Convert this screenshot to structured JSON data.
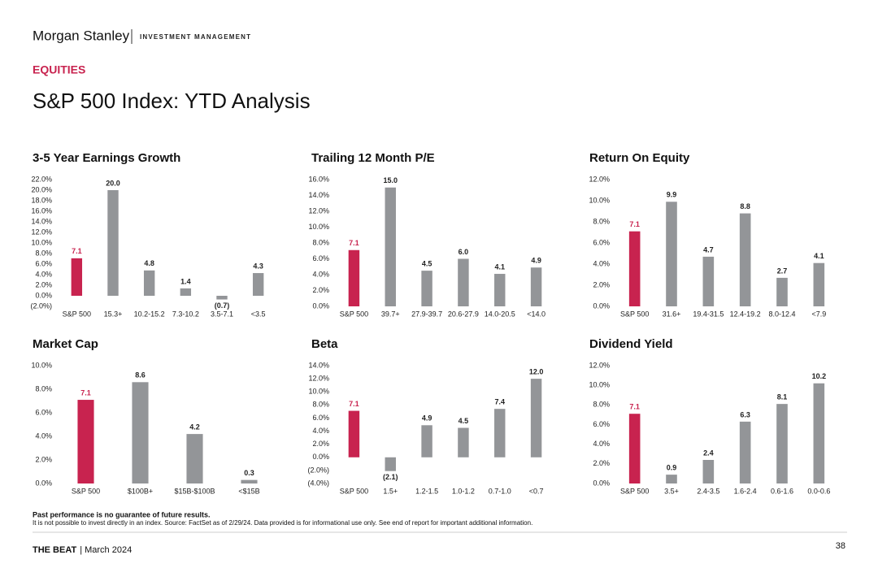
{
  "header": {
    "brand": "Morgan Stanley",
    "division": "INVESTMENT MANAGEMENT",
    "section": "EQUITIES",
    "title": "S&P 500 Index: YTD Analysis"
  },
  "chart_data": [
    {
      "type": "bar",
      "title": "3-5 Year Earnings Growth",
      "color": "#939598",
      "categories": [
        "S&P 500",
        "15.3+",
        "10.2-15.2",
        "7.3-10.2",
        "3.5-7.1",
        "<3.5"
      ],
      "values": [
        7.1,
        20,
        4.8,
        1.4,
        -0.7,
        4.3
      ],
      "value_labels": [
        "7.1",
        "20.0",
        "4.8",
        "1.4",
        "(0.7)",
        "4.3"
      ],
      "colors": [
        "#c8234f",
        "#939598",
        "#939598",
        "#939598",
        "#939598",
        "#939598"
      ],
      "ylim": [
        -2,
        22
      ],
      "yticks": [
        {
          "value": -2,
          "label": "(2.0%)"
        },
        {
          "value": 0,
          "label": "0.0%"
        },
        {
          "value": 2,
          "label": "2.0%"
        },
        {
          "value": 4,
          "label": "4.0%"
        },
        {
          "value": 6,
          "label": "6.0%"
        },
        {
          "value": 8,
          "label": "8.0%"
        },
        {
          "value": 10,
          "label": "10.0%"
        },
        {
          "value": 12,
          "label": "12.0%"
        },
        {
          "value": 14,
          "label": "14.0%"
        },
        {
          "value": 16,
          "label": "16.0%"
        },
        {
          "value": 18,
          "label": "18.0%"
        },
        {
          "value": 20,
          "label": "20.0%"
        },
        {
          "value": 22,
          "label": "22.0%"
        }
      ]
    },
    {
      "type": "bar",
      "title": "Trailing 12 Month P/E",
      "color": "#939598",
      "categories": [
        "S&P 500",
        "39.7+",
        "27.9-39.7",
        "20.6-27.9",
        "14.0-20.5",
        "<14.0"
      ],
      "values": [
        7.1,
        15,
        4.5,
        6,
        4.1,
        4.9
      ],
      "value_labels": [
        "7.1",
        "15.0",
        "4.5",
        "6.0",
        "4.1",
        "4.9"
      ],
      "colors": [
        "#c8234f",
        "#939598",
        "#939598",
        "#939598",
        "#939598",
        "#939598"
      ],
      "ylim": [
        0,
        16
      ],
      "yticks": [
        {
          "value": 0,
          "label": "0.0%"
        },
        {
          "value": 2,
          "label": "2.0%"
        },
        {
          "value": 4,
          "label": "4.0%"
        },
        {
          "value": 6,
          "label": "6.0%"
        },
        {
          "value": 8,
          "label": "8.0%"
        },
        {
          "value": 10,
          "label": "10.0%"
        },
        {
          "value": 12,
          "label": "12.0%"
        },
        {
          "value": 14,
          "label": "14.0%"
        },
        {
          "value": 16,
          "label": "16.0%"
        }
      ]
    },
    {
      "type": "bar",
      "title": "Return On Equity",
      "color": "#939598",
      "categories": [
        "S&P 500",
        "31.6+",
        "19.4-31.5",
        "12.4-19.2",
        "8.0-12.4",
        "<7.9"
      ],
      "values": [
        7.1,
        9.9,
        4.7,
        8.8,
        2.7,
        4.1
      ],
      "value_labels": [
        "7.1",
        "9.9",
        "4.7",
        "8.8",
        "2.7",
        "4.1"
      ],
      "colors": [
        "#c8234f",
        "#939598",
        "#939598",
        "#939598",
        "#939598",
        "#939598"
      ],
      "ylim": [
        0,
        12
      ],
      "yticks": [
        {
          "value": 0,
          "label": "0.0%"
        },
        {
          "value": 2,
          "label": "2.0%"
        },
        {
          "value": 4,
          "label": "4.0%"
        },
        {
          "value": 6,
          "label": "6.0%"
        },
        {
          "value": 8,
          "label": "8.0%"
        },
        {
          "value": 10,
          "label": "10.0%"
        },
        {
          "value": 12,
          "label": "12.0%"
        }
      ]
    },
    {
      "type": "bar",
      "title": "Market Cap",
      "color": "#939598",
      "categories": [
        "S&P 500",
        "$100B+",
        "$15B-$100B",
        "<$15B"
      ],
      "values": [
        7.1,
        8.6,
        4.2,
        0.3
      ],
      "value_labels": [
        "7.1",
        "8.6",
        "4.2",
        "0.3"
      ],
      "colors": [
        "#c8234f",
        "#939598",
        "#939598",
        "#939598"
      ],
      "ylim": [
        0,
        10
      ],
      "yticks": [
        {
          "value": 0,
          "label": "0.0%"
        },
        {
          "value": 2,
          "label": "2.0%"
        },
        {
          "value": 4,
          "label": "4.0%"
        },
        {
          "value": 6,
          "label": "6.0%"
        },
        {
          "value": 8,
          "label": "8.0%"
        },
        {
          "value": 10,
          "label": "10.0%"
        }
      ]
    },
    {
      "type": "bar",
      "title": "Beta",
      "color": "#939598",
      "categories": [
        "S&P 500",
        "1.5+",
        "1.2-1.5",
        "1.0-1.2",
        "0.7-1.0",
        "<0.7"
      ],
      "values": [
        7.1,
        -2.1,
        4.9,
        4.5,
        7.4,
        12
      ],
      "value_labels": [
        "7.1",
        "(2.1)",
        "4.9",
        "4.5",
        "7.4",
        "12.0"
      ],
      "colors": [
        "#c8234f",
        "#939598",
        "#939598",
        "#939598",
        "#939598",
        "#939598"
      ],
      "ylim": [
        -4,
        14
      ],
      "yticks": [
        {
          "value": -4,
          "label": "(4.0%)"
        },
        {
          "value": -2,
          "label": "(2.0%)"
        },
        {
          "value": 0,
          "label": "0.0%"
        },
        {
          "value": 2,
          "label": "2.0%"
        },
        {
          "value": 4,
          "label": "4.0%"
        },
        {
          "value": 6,
          "label": "6.0%"
        },
        {
          "value": 8,
          "label": "8.0%"
        },
        {
          "value": 10,
          "label": "10.0%"
        },
        {
          "value": 12,
          "label": "12.0%"
        },
        {
          "value": 14,
          "label": "14.0%"
        }
      ]
    },
    {
      "type": "bar",
      "title": "Dividend Yield",
      "color": "#939598",
      "categories": [
        "S&P 500",
        "3.5+",
        "2.4-3.5",
        "1.6-2.4",
        "0.6-1.6",
        "0.0-0.6"
      ],
      "values": [
        7.1,
        0.9,
        2.4,
        6.3,
        8.1,
        10.2
      ],
      "value_labels": [
        "7.1",
        "0.9",
        "2.4",
        "6.3",
        "8.1",
        "10.2"
      ],
      "colors": [
        "#c8234f",
        "#939598",
        "#939598",
        "#939598",
        "#939598",
        "#939598"
      ],
      "ylim": [
        0,
        12
      ],
      "yticks": [
        {
          "value": 0,
          "label": "0.0%"
        },
        {
          "value": 2,
          "label": "2.0%"
        },
        {
          "value": 4,
          "label": "4.0%"
        },
        {
          "value": 6,
          "label": "6.0%"
        },
        {
          "value": 8,
          "label": "8.0%"
        },
        {
          "value": 10,
          "label": "10.0%"
        },
        {
          "value": 12,
          "label": "12.0%"
        }
      ]
    }
  ],
  "footer": {
    "disclaimer_bold": "Past performance is no guarantee of future results.",
    "disclaimer": "It is not possible to invest directly in an index. Source: FactSet as of 2/29/24. Data provided is for informational use only. See end of report for important additional information.",
    "publication": "THE BEAT",
    "date": "| March 2024",
    "page": "38"
  }
}
